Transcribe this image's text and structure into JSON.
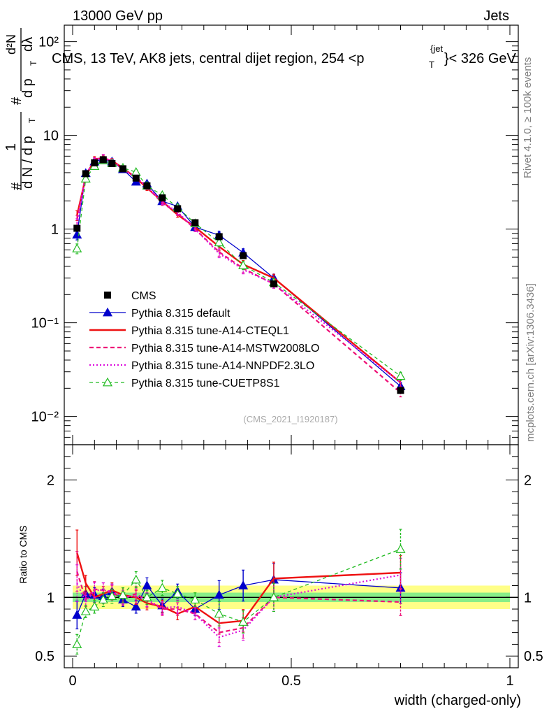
{
  "header": {
    "left": "13000 GeV pp",
    "right": "Jets",
    "title": "CMS, 13 TeV, AK8 jets, central dijet region, 254 <p",
    "title_super": "{jet",
    "title_sub": "T",
    "title_end": "}< 326 GeV"
  },
  "side": {
    "rivet": "Rivet 4.1.0, ≥ 100k events",
    "mcplots": "mcplots.cern.ch [arXiv:1306.3436]"
  },
  "watermark": "(CMS_2021_I1920187)",
  "ylabel_main": {
    "hash": "#",
    "one": "1",
    "dN": "d N / d p",
    "T": "T",
    "d2N": "d²N",
    "dp": "d p",
    "dl": "dλ"
  },
  "ylabel_ratio": "Ratio to CMS",
  "xlabel": "width (charged-only)",
  "colors": {
    "data": "#000000",
    "default": "#0000cc",
    "cteql1": "#ee1111",
    "mstw": "#ee1177",
    "nnpdf": "#dd11dd",
    "cuetp": "#22bb22",
    "band_outer": "#ffff88",
    "band_inner": "#88ee88"
  },
  "chart_data": {
    "type": "line",
    "title": "CMS, 13 TeV, AK8 jets, central dijet region, 254 < pT(jet) < 326 GeV",
    "xlabel": "width (charged-only)",
    "ylabel": "1/(dN/dpT) d²N/(dpT dλ)",
    "xlim": [
      0,
      1
    ],
    "ylim_main": [
      0.005,
      150
    ],
    "yscale_main": "log",
    "ylim_ratio": [
      0.4,
      2.3
    ],
    "x_ticks": [
      "0",
      "0.5",
      "1"
    ],
    "y_ticks_main": [
      "10⁻²",
      "10⁻¹",
      "1",
      "10",
      "10²"
    ],
    "y_ticks_ratio": [
      "0.5",
      "1",
      "2"
    ],
    "x": [
      0.01,
      0.03,
      0.05,
      0.07,
      0.09,
      0.115,
      0.145,
      0.17,
      0.205,
      0.24,
      0.28,
      0.335,
      0.39,
      0.46,
      0.75
    ],
    "data": {
      "name": "CMS",
      "values": [
        1.02,
        3.9,
        5.1,
        5.5,
        5.0,
        4.4,
        3.5,
        2.9,
        2.15,
        1.65,
        1.17,
        0.83,
        0.52,
        0.26,
        0.019
      ],
      "band_inner": 0.04,
      "band_outer": 0.1
    },
    "series": [
      {
        "name": "Pythia 8.315 default",
        "key": "default",
        "values": [
          0.87,
          3.95,
          5.25,
          5.6,
          5.25,
          4.35,
          3.2,
          3.05,
          1.98,
          1.75,
          1.05,
          0.86,
          0.56,
          0.3,
          0.021
        ],
        "ratio": [
          0.85,
          1.03,
          1.02,
          1.01,
          1.05,
          0.98,
          0.92,
          1.1,
          0.93,
          1.05,
          0.9,
          1.02,
          1.1,
          1.15,
          1.08
        ]
      },
      {
        "name": "Pythia 8.315 tune-A14-CTEQL1",
        "key": "cteql1",
        "values": [
          1.4,
          3.6,
          5.6,
          5.7,
          5.35,
          4.5,
          3.5,
          2.75,
          1.98,
          1.42,
          1.05,
          0.65,
          0.42,
          0.3,
          0.023
        ],
        "ratio": [
          1.38,
          1.12,
          1.0,
          1.03,
          1.06,
          1.02,
          1.0,
          0.95,
          0.92,
          0.86,
          0.92,
          0.78,
          0.8,
          1.16,
          1.21
        ]
      },
      {
        "name": "Pythia 8.315 tune-A14-MSTW2008LO",
        "key": "mstw",
        "values": [
          1.25,
          3.8,
          5.45,
          5.9,
          5.25,
          4.35,
          3.6,
          2.8,
          1.9,
          1.48,
          1.0,
          0.57,
          0.38,
          0.26,
          0.018
        ],
        "ratio": [
          1.22,
          0.98,
          1.07,
          1.06,
          1.04,
          0.99,
          1.03,
          0.97,
          0.9,
          0.9,
          0.86,
          0.7,
          0.74,
          1.0,
          0.96
        ]
      },
      {
        "name": "Pythia 8.315 tune-A14-NNPDF2.3LO",
        "key": "nnpdf",
        "values": [
          1.15,
          3.75,
          5.4,
          5.85,
          5.3,
          4.4,
          3.55,
          2.85,
          1.95,
          1.52,
          1.0,
          0.55,
          0.37,
          0.26,
          0.023
        ],
        "ratio": [
          1.12,
          0.96,
          1.06,
          1.06,
          1.05,
          1.0,
          1.01,
          0.98,
          0.91,
          0.92,
          0.86,
          0.66,
          0.72,
          1.0,
          1.19
        ]
      },
      {
        "name": "Pythia 8.315 tune-CUETP8S1",
        "key": "cuetp",
        "values": [
          0.62,
          3.45,
          4.7,
          5.4,
          5.05,
          4.5,
          4.05,
          2.9,
          2.3,
          1.7,
          1.15,
          0.72,
          0.41,
          0.27,
          0.027
        ],
        "ratio": [
          0.6,
          0.88,
          0.92,
          0.98,
          1.01,
          1.02,
          1.15,
          1.0,
          1.08,
          1.03,
          0.98,
          0.86,
          0.79,
          1.0,
          1.41
        ]
      }
    ]
  }
}
